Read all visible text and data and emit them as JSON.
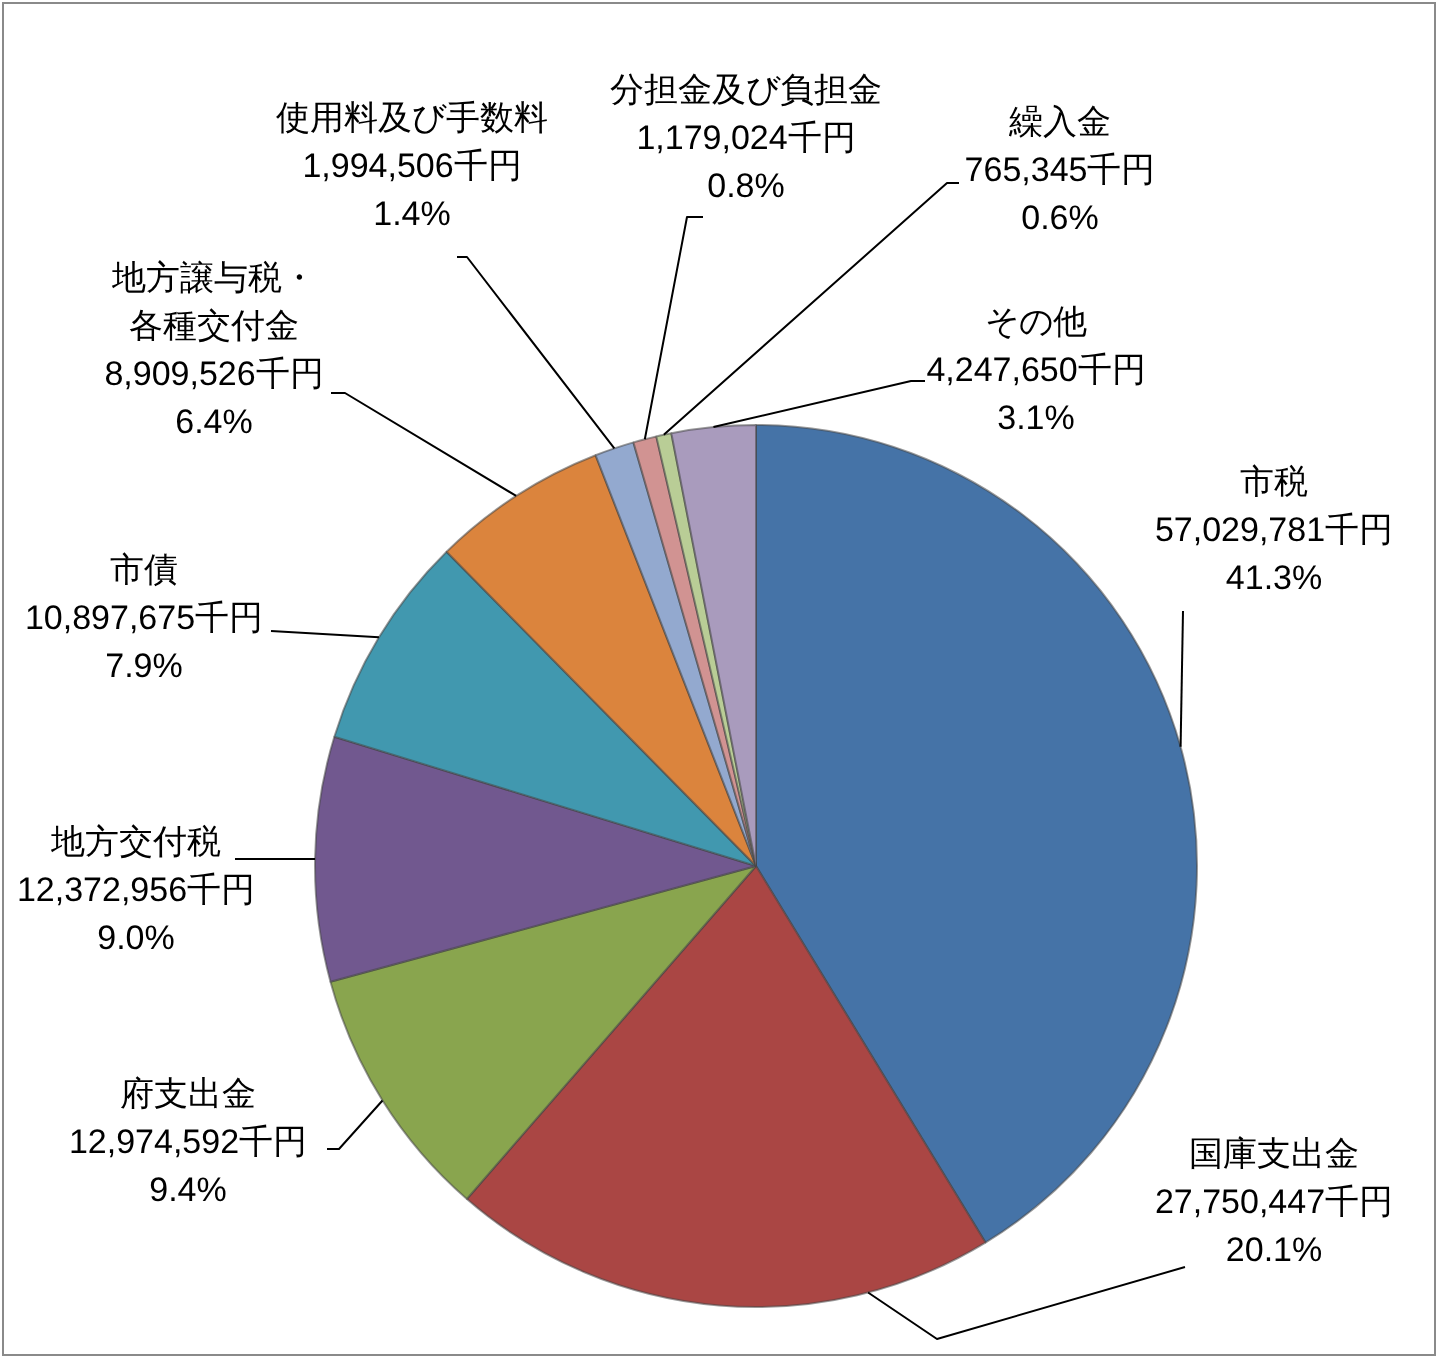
{
  "chart_data": {
    "type": "pie",
    "categories": [
      "市税",
      "国庫支出金",
      "府支出金",
      "地方交付税",
      "市債",
      "地方譲与税・各種交付金",
      "使用料及び手数料",
      "分担金及び負担金",
      "繰入金",
      "その他"
    ],
    "values": [
      57029781,
      27750447,
      12974592,
      12372956,
      10897675,
      8909526,
      1994506,
      1179024,
      765345,
      4247650
    ],
    "colors": [
      "#4573a7",
      "#aa4644",
      "#89a54e",
      "#71588f",
      "#4198af",
      "#db843d",
      "#93a9cf",
      "#d19392",
      "#b9cd96",
      "#a99bbd"
    ],
    "value_labels": [
      "57,029,781千円\n41.3%",
      "27,750,447千円\n20.1%",
      "12,974,592千円\n9.4%",
      "12,372,956千円\n9.0%",
      "10,897,675千円\n7.9%",
      "8,909,526千円\n6.4%",
      "1,994,506千円\n1.4%",
      "1,179,024千円\n0.8%",
      "765,345千円\n0.6%",
      "4,247,650千円\n3.1%"
    ]
  }
}
